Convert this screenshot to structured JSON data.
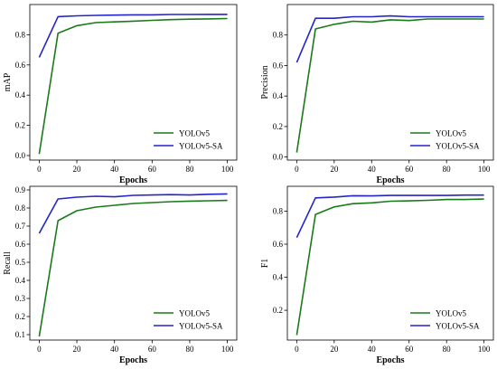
{
  "colors": {
    "yolov5": "#1a7a1a",
    "yolov5_sa": "#2424c8"
  },
  "chart_data": [
    {
      "type": "line",
      "xlabel": "Epochs",
      "ylabel": "mAP",
      "xlim": [
        -5,
        105
      ],
      "ylim": [
        -0.03,
        1.0
      ],
      "xticks": [
        0,
        20,
        40,
        60,
        80,
        100
      ],
      "yticks": [
        0.0,
        0.2,
        0.4,
        0.6,
        0.8
      ],
      "ytick_labels": [
        "0.0",
        "0.2",
        "0.4",
        "0.6",
        "0.8"
      ],
      "legend": "lower-right",
      "x": [
        0,
        10,
        20,
        30,
        40,
        50,
        60,
        70,
        80,
        90,
        100
      ],
      "series": [
        {
          "name": "YOLOv5",
          "color": "#1a7a1a",
          "values": [
            0.01,
            0.81,
            0.86,
            0.88,
            0.885,
            0.89,
            0.895,
            0.9,
            0.903,
            0.905,
            0.907
          ]
        },
        {
          "name": "YOLOv5-SA",
          "color": "#2424c8",
          "values": [
            0.65,
            0.92,
            0.925,
            0.928,
            0.93,
            0.932,
            0.932,
            0.934,
            0.934,
            0.935,
            0.935
          ]
        }
      ]
    },
    {
      "type": "line",
      "xlabel": "Epochs",
      "ylabel": "Precision",
      "xlim": [
        -5,
        105
      ],
      "ylim": [
        -0.02,
        1.0
      ],
      "xticks": [
        0,
        20,
        40,
        60,
        80,
        100
      ],
      "yticks": [
        0.0,
        0.2,
        0.4,
        0.6,
        0.8
      ],
      "ytick_labels": [
        "0.0",
        "0.2",
        "0.4",
        "0.6",
        "0.8"
      ],
      "legend": "lower-right",
      "x": [
        0,
        10,
        20,
        30,
        40,
        50,
        60,
        70,
        80,
        90,
        100
      ],
      "series": [
        {
          "name": "YOLOv5",
          "color": "#1a7a1a",
          "values": [
            0.03,
            0.84,
            0.87,
            0.89,
            0.885,
            0.9,
            0.895,
            0.905,
            0.905,
            0.905,
            0.905
          ]
        },
        {
          "name": "YOLOv5-SA",
          "color": "#2424c8",
          "values": [
            0.62,
            0.91,
            0.91,
            0.92,
            0.92,
            0.925,
            0.92,
            0.92,
            0.92,
            0.92,
            0.92
          ]
        }
      ]
    },
    {
      "type": "line",
      "xlabel": "Epochs",
      "ylabel": "Recall",
      "xlim": [
        -5,
        105
      ],
      "ylim": [
        0.07,
        0.92
      ],
      "xticks": [
        0,
        20,
        40,
        60,
        80,
        100
      ],
      "yticks": [
        0.1,
        0.2,
        0.3,
        0.4,
        0.5,
        0.6,
        0.7,
        0.8,
        0.9
      ],
      "ytick_labels": [
        "0.1",
        "0.2",
        "0.3",
        "0.4",
        "0.5",
        "0.6",
        "0.7",
        "0.8",
        "0.9"
      ],
      "legend": "lower-right",
      "x": [
        0,
        10,
        20,
        30,
        40,
        50,
        60,
        70,
        80,
        90,
        100
      ],
      "series": [
        {
          "name": "YOLOv5",
          "color": "#1a7a1a",
          "values": [
            0.09,
            0.73,
            0.785,
            0.805,
            0.815,
            0.825,
            0.83,
            0.835,
            0.838,
            0.84,
            0.842
          ]
        },
        {
          "name": "YOLOv5-SA",
          "color": "#2424c8",
          "values": [
            0.66,
            0.85,
            0.86,
            0.865,
            0.862,
            0.87,
            0.872,
            0.874,
            0.872,
            0.876,
            0.878
          ]
        }
      ]
    },
    {
      "type": "line",
      "xlabel": "Epochs",
      "ylabel": "F1",
      "xlim": [
        -5,
        105
      ],
      "ylim": [
        0.02,
        0.95
      ],
      "xticks": [
        0,
        20,
        40,
        60,
        80,
        100
      ],
      "yticks": [
        0.2,
        0.4,
        0.6,
        0.8
      ],
      "ytick_labels": [
        "0.2",
        "0.4",
        "0.6",
        "0.8"
      ],
      "legend": "lower-right",
      "x": [
        0,
        10,
        20,
        30,
        40,
        50,
        60,
        70,
        80,
        90,
        100
      ],
      "series": [
        {
          "name": "YOLOv5",
          "color": "#1a7a1a",
          "values": [
            0.05,
            0.78,
            0.825,
            0.845,
            0.85,
            0.86,
            0.862,
            0.865,
            0.87,
            0.87,
            0.873
          ]
        },
        {
          "name": "YOLOv5-SA",
          "color": "#2424c8",
          "values": [
            0.64,
            0.88,
            0.885,
            0.893,
            0.892,
            0.895,
            0.895,
            0.895,
            0.895,
            0.897,
            0.897
          ]
        }
      ]
    }
  ]
}
